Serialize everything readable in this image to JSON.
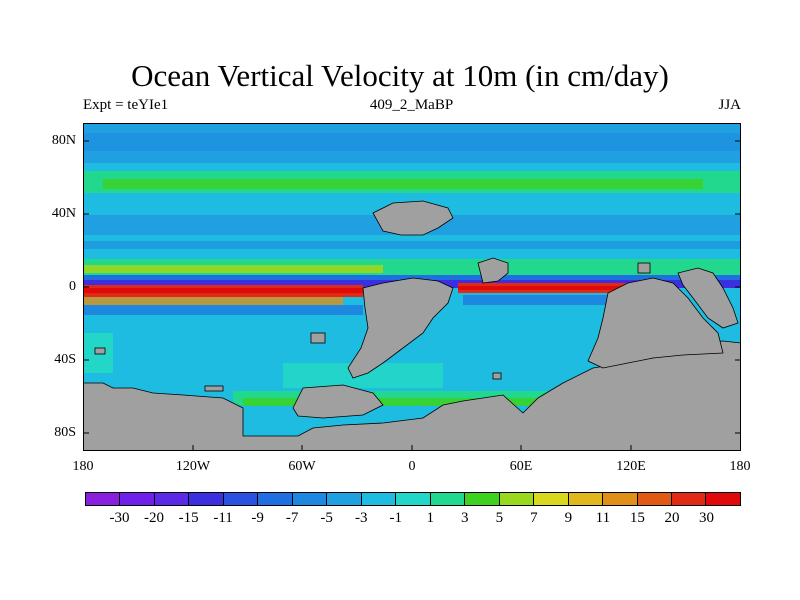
{
  "title": "Ocean Vertical Velocity at 10m (in cm/day)",
  "left_label": "Expt = teYIe1",
  "center_label": "409_2_MaBP",
  "right_label": "JJA",
  "lat_ticks": [
    "80N",
    "40N",
    "0",
    "40S",
    "80S"
  ],
  "lon_ticks": [
    "180",
    "120W",
    "60W",
    "0",
    "60E",
    "120E",
    "180"
  ],
  "colorbar": {
    "labels": [
      "-30",
      "-20",
      "-15",
      "-11",
      "-9",
      "-7",
      "-5",
      "-3",
      "-1",
      "1",
      "3",
      "5",
      "7",
      "9",
      "11",
      "15",
      "20",
      "30"
    ],
    "colors": [
      "#8a1fe0",
      "#7020e8",
      "#5a2ae6",
      "#3a30e0",
      "#2a52e0",
      "#1f6fe0",
      "#1e88e0",
      "#20a0e0",
      "#1ebce0",
      "#22d6c8",
      "#22d88e",
      "#3dd21e",
      "#9ad81e",
      "#d8d81e",
      "#e0b81e",
      "#e09018",
      "#e05a16",
      "#e02a16",
      "#e00a0a"
    ]
  },
  "colors": {
    "land": "#a0a0a0",
    "ocean_base": "#1ebce0"
  }
}
